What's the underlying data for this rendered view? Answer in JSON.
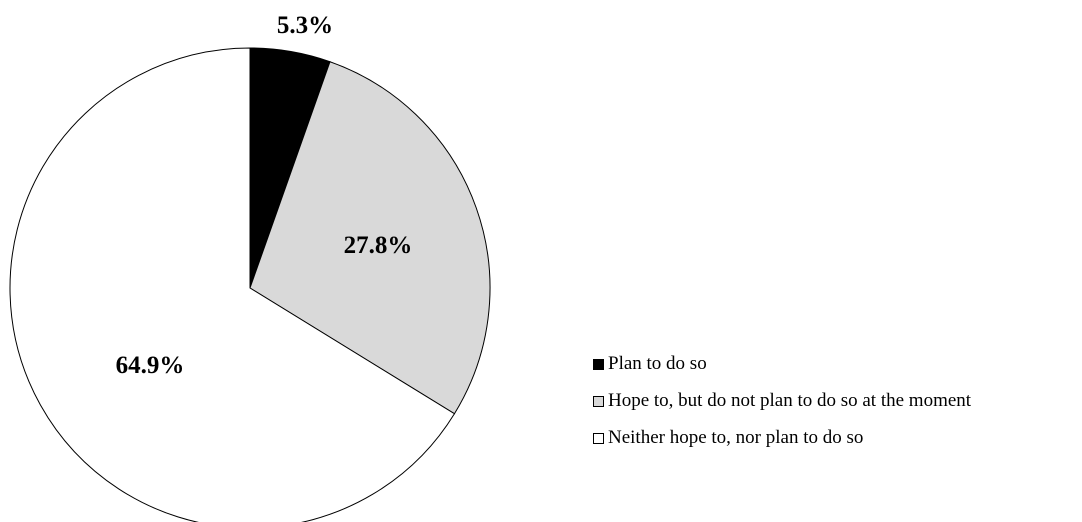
{
  "chart_data": {
    "type": "pie",
    "title": "",
    "start_angle_deg": 0,
    "direction": "clockwise",
    "legend_placement": "right",
    "slices": [
      {
        "label": "Plan to do so",
        "value": 5.3,
        "value_label": "5.3%",
        "color": "#000000"
      },
      {
        "label": "Hope to, but do not plan to do so at the moment",
        "value": 27.8,
        "value_label": "27.8%",
        "color": "#d9d9d9"
      },
      {
        "label": "Neither hope to, nor plan to do so",
        "value": 64.9,
        "value_label": "64.9%",
        "color": "#ffffff"
      }
    ]
  }
}
